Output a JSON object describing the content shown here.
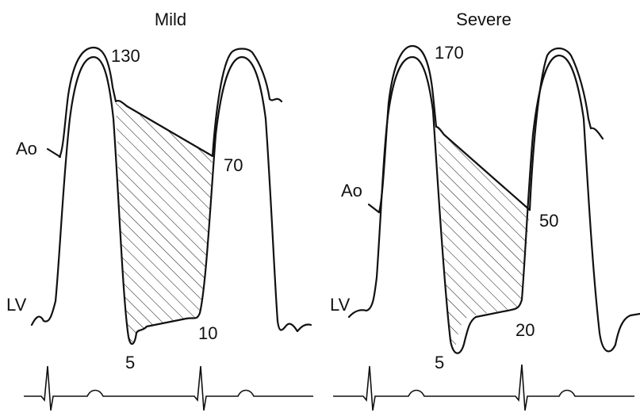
{
  "panels": [
    {
      "title": "Mild",
      "aorta_label": "Ao",
      "ventricle_label": "LV",
      "peak": "130",
      "aortic_diastolic": "70",
      "ventricular_nadir": "5",
      "ventricular_end_diastolic": "10"
    },
    {
      "title": "Severe",
      "aorta_label": "Ao",
      "ventricle_label": "LV",
      "peak": "170",
      "aortic_diastolic": "50",
      "ventricular_nadir": "5",
      "ventricular_end_diastolic": "20"
    }
  ]
}
